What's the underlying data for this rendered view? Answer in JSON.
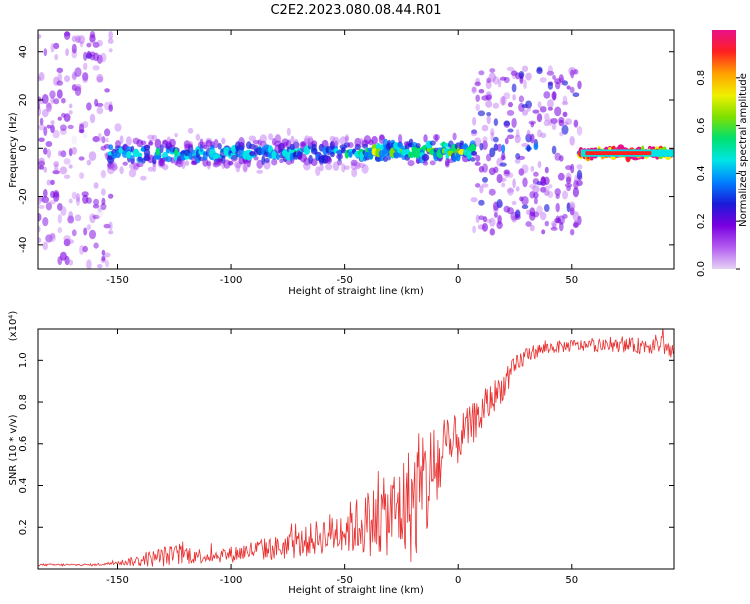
{
  "figure_title": "C2E2.2023.080.08.44.R01",
  "colors": {
    "signal": "#e83232",
    "colormap": [
      "#e6d3f5",
      "#b35cf0",
      "#7a00e0",
      "#1a1ad8",
      "#0080ff",
      "#00e5e5",
      "#00e070",
      "#7ee000",
      "#f0f000",
      "#ffa000",
      "#ff2020",
      "#e8108a"
    ]
  },
  "chart_data": [
    {
      "type": "heatmap",
      "title": "",
      "xlabel": "Height of straight line (km)",
      "ylabel": "Frequency (Hz)",
      "xlim": [
        -185,
        95
      ],
      "ylim": [
        -50,
        49
      ],
      "xticks": [
        -150,
        -100,
        -50,
        0,
        50
      ],
      "xtick_labels": [
        "-150",
        "-100",
        "-50",
        "0",
        "50"
      ],
      "yticks": [
        -40,
        -20,
        0,
        20,
        40
      ],
      "ytick_labels": [
        "-40",
        "-20",
        "0",
        "20",
        "40"
      ],
      "grid": false,
      "colorbar": {
        "label": "Normalized spectral amplitude",
        "range": [
          0,
          1
        ],
        "ticks": [
          0,
          0.2,
          0.4,
          0.6,
          0.8
        ],
        "tick_labels": [
          "0.0",
          "0.2",
          "0.4",
          "0.6",
          "0.8"
        ],
        "placement": "right"
      },
      "regions": [
        {
          "x": [
            -185,
            -153
          ],
          "freq_spread": 49,
          "amplitude": 0.12
        },
        {
          "x": [
            -153,
            -40
          ],
          "freq_center": -2,
          "freq_spread": 8,
          "amplitude": 0.3
        },
        {
          "x": [
            -40,
            7
          ],
          "freq_center": -1,
          "freq_spread": 5,
          "amplitude": 0.4
        },
        {
          "x": [
            7,
            54
          ],
          "freq_center": -1,
          "freq_spread": 34,
          "amplitude": 0.15
        },
        {
          "x": [
            54,
            95
          ],
          "freq_center": -2,
          "freq_spread": 2,
          "amplitude": 0.85
        }
      ]
    },
    {
      "type": "line",
      "title": "",
      "xlabel": "Height of straight line (km)",
      "ylabel": "SNR (10 * v/v)",
      "y_multiplier": "(x10⁴)",
      "xlim": [
        -185,
        95
      ],
      "ylim": [
        0,
        1.15
      ],
      "xticks": [
        -150,
        -100,
        -50,
        0,
        50
      ],
      "xtick_labels": [
        "-150",
        "-100",
        "-50",
        "0",
        "50"
      ],
      "yticks": [
        0.2,
        0.4,
        0.6,
        0.8,
        1.0
      ],
      "ytick_labels": [
        "0.2",
        "0.4",
        "0.6",
        "0.8",
        "1.0"
      ],
      "grid": false,
      "series": [
        {
          "x": [
            -185,
            -160,
            -150,
            -140,
            -130,
            -120,
            -110,
            -100,
            -90,
            -80,
            -70,
            -60,
            -50,
            -40,
            -30,
            -20,
            -15,
            -10,
            -5,
            0,
            5,
            10,
            15,
            20,
            25,
            30,
            40,
            50,
            60,
            70,
            80,
            90,
            95
          ],
          "values": [
            0.02,
            0.02,
            0.03,
            0.04,
            0.06,
            0.07,
            0.06,
            0.07,
            0.09,
            0.1,
            0.12,
            0.16,
            0.19,
            0.22,
            0.26,
            0.32,
            0.38,
            0.48,
            0.55,
            0.62,
            0.68,
            0.74,
            0.82,
            0.88,
            0.96,
            1.03,
            1.06,
            1.07,
            1.07,
            1.07,
            1.07,
            1.08,
            1.03
          ],
          "noise": [
            0.005,
            0.005,
            0.01,
            0.03,
            0.05,
            0.05,
            0.03,
            0.04,
            0.05,
            0.06,
            0.07,
            0.09,
            0.12,
            0.16,
            0.2,
            0.3,
            0.3,
            0.25,
            0.18,
            0.12,
            0.1,
            0.1,
            0.08,
            0.07,
            0.06,
            0.04,
            0.03,
            0.03,
            0.03,
            0.03,
            0.04,
            0.05,
            0.05
          ]
        }
      ]
    }
  ]
}
